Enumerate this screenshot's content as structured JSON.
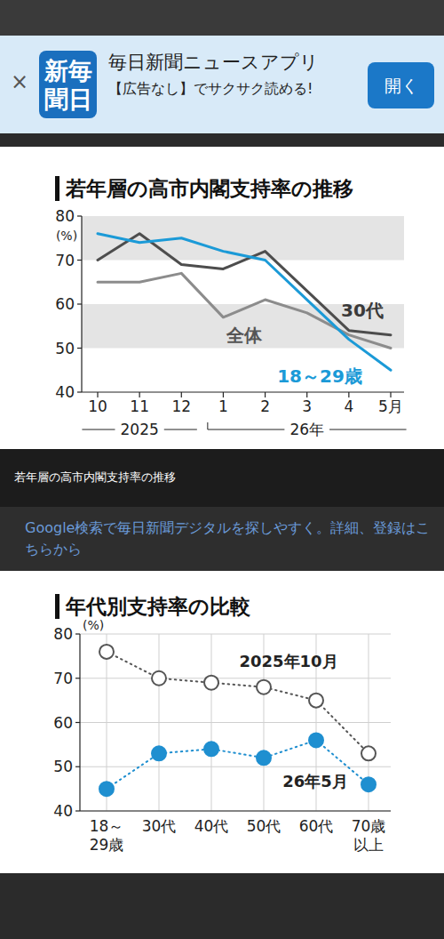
{
  "banner": {
    "close": "×",
    "icon_lines": [
      "新毎",
      "聞日"
    ],
    "title": "毎日新聞ニュースアプリ",
    "subtitle": "【広告なし】でサクサク読める!",
    "button": "開く"
  },
  "caption": "若年層の高市内閣支持率の推移",
  "link": "Google検索で毎日新聞デジタルを探しやすく。詳細、登録はこちらから",
  "chart_data": [
    {
      "type": "line",
      "title": "若年層の高市内閣支持率の推移",
      "ylabel": "(%)",
      "categories": [
        "10",
        "11",
        "12",
        "1",
        "2",
        "3",
        "4",
        "5月"
      ],
      "x_groups": [
        {
          "label": "2025",
          "start": 0,
          "end": 2
        },
        {
          "label": "26年",
          "start": 3,
          "end": 7
        }
      ],
      "series": [
        {
          "name": "全体",
          "color": "#8c8c8c",
          "values": [
            65,
            65,
            67,
            57,
            61,
            58,
            53,
            50
          ]
        },
        {
          "name": "30代",
          "color": "#4d4d4d",
          "values": [
            70,
            76,
            69,
            68,
            72,
            63,
            54,
            53
          ]
        },
        {
          "name": "18～29歳",
          "color": "#1b9ad7",
          "values": [
            76,
            74,
            75,
            72,
            70,
            61,
            52,
            45
          ]
        }
      ],
      "ylim": [
        40,
        80
      ],
      "yticks": [
        40,
        50,
        60,
        70,
        80
      ],
      "grid": true
    },
    {
      "type": "line",
      "title": "年代別支持率の比較",
      "ylabel": "(%)",
      "categories": [
        "18～29歳",
        "30代",
        "40代",
        "50代",
        "60代",
        "70歳以上"
      ],
      "series": [
        {
          "name": "2025年10月",
          "color": "#555555",
          "marker": "circle-open",
          "line_style": "dotted",
          "values": [
            76,
            70,
            69,
            68,
            65,
            53
          ]
        },
        {
          "name": "26年5月",
          "color": "#1f8fd0",
          "marker": "circle",
          "line_style": "dotted",
          "values": [
            45,
            53,
            54,
            52,
            56,
            46
          ]
        }
      ],
      "ylim": [
        40,
        80
      ],
      "yticks": [
        40,
        50,
        60,
        70,
        80
      ],
      "grid": true
    }
  ]
}
